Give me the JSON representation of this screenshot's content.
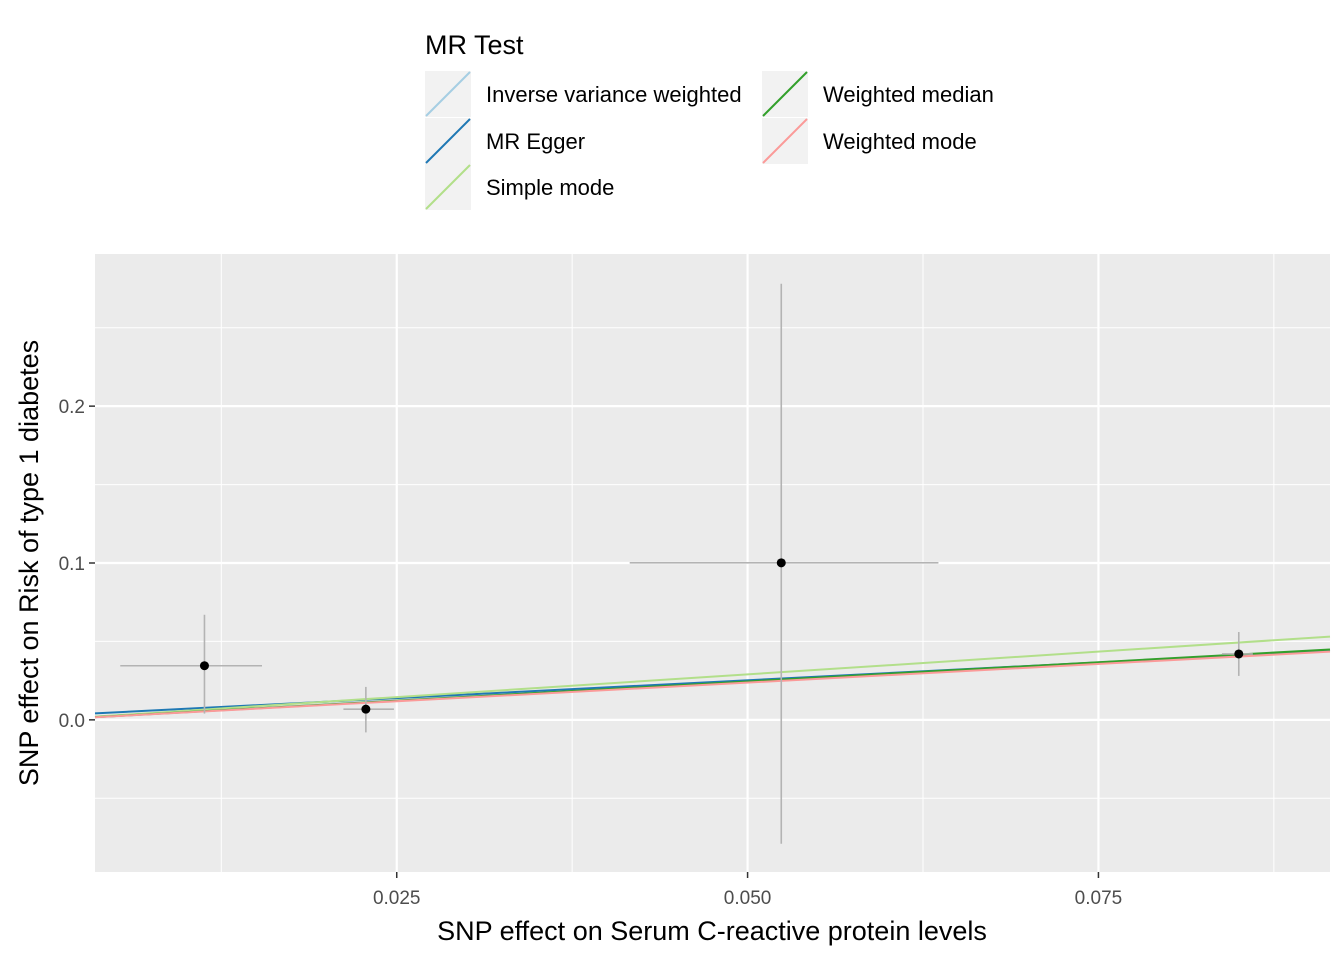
{
  "chart_data": {
    "type": "scatter",
    "title": "",
    "xlabel": "SNP effect on Serum C-reactive protein levels",
    "ylabel": "SNP effect on Risk of type 1 diabetes",
    "xlim": [
      0.0035,
      0.0915
    ],
    "ylim": [
      -0.097,
      0.297
    ],
    "x_ticks": [
      0.025,
      0.05,
      0.075
    ],
    "x_tick_labels": [
      "0.025",
      "0.050",
      "0.075"
    ],
    "y_ticks": [
      0.0,
      0.1,
      0.2
    ],
    "y_tick_labels": [
      "0.0",
      "0.1",
      "0.2"
    ],
    "grid": true,
    "legend": {
      "title": "MR Test",
      "position": "top",
      "columns": 2
    },
    "points": [
      {
        "x": 0.0113,
        "y": 0.0345,
        "x_lo": 0.0053,
        "x_hi": 0.0154,
        "y_lo": 0.004,
        "y_hi": 0.067
      },
      {
        "x": 0.0228,
        "y": 0.0068,
        "x_lo": 0.0212,
        "x_hi": 0.0248,
        "y_lo": -0.008,
        "y_hi": 0.021
      },
      {
        "x": 0.0524,
        "y": 0.1001,
        "x_lo": 0.0416,
        "x_hi": 0.0636,
        "y_lo": -0.079,
        "y_hi": 0.278
      },
      {
        "x": 0.085,
        "y": 0.042,
        "x_lo": 0.0838,
        "x_hi": 0.086,
        "y_lo": 0.028,
        "y_hi": 0.056
      }
    ],
    "series": [
      {
        "name": "Inverse variance weighted",
        "intercept": 0.0,
        "slope": 0.487,
        "color": "#a6cee3"
      },
      {
        "name": "MR Egger",
        "intercept": 0.0025,
        "slope": 0.455,
        "color": "#1f78b4"
      },
      {
        "name": "Simple mode",
        "intercept": 0.0,
        "slope": 0.58,
        "color": "#b2df8a"
      },
      {
        "name": "Weighted median",
        "intercept": 0.0,
        "slope": 0.49,
        "color": "#33a02c"
      },
      {
        "name": "Weighted mode",
        "intercept": 0.0,
        "slope": 0.475,
        "color": "#fb9a99"
      }
    ]
  }
}
